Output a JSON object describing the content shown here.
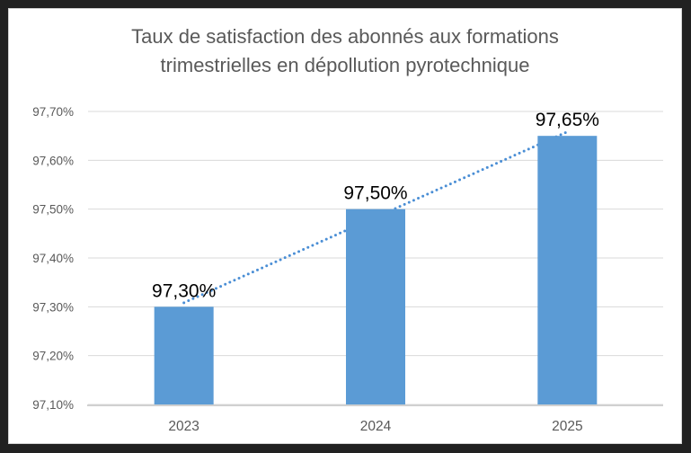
{
  "frame": {
    "background": "#212121"
  },
  "chart": {
    "background": "#ffffff",
    "border_color": "#d4d4d4",
    "title_color": "#595959",
    "title_lines": [
      "Taux de satisfaction des abonnés aux formations",
      "trimestrielles en dépollution pyrotechnique"
    ]
  },
  "chart_data": {
    "type": "bar",
    "title": "Taux de satisfaction des abonnés aux formations trimestrielles en dépollution pyrotechnique",
    "categories": [
      "2023",
      "2024",
      "2025"
    ],
    "values": [
      97.3,
      97.5,
      97.65
    ],
    "data_labels": [
      "97,30%",
      "97,50%",
      "97,65%"
    ],
    "data_label_color": "#000000",
    "bar_color": "#5b9bd5",
    "ylim": [
      97.1,
      97.7
    ],
    "y_ticks": [
      {
        "value": 97.7,
        "label": "97,70%"
      },
      {
        "value": 97.6,
        "label": "97,60%"
      },
      {
        "value": 97.5,
        "label": "97,50%"
      },
      {
        "value": 97.4,
        "label": "97,40%"
      },
      {
        "value": 97.3,
        "label": "97,30%"
      },
      {
        "value": 97.2,
        "label": "97,20%"
      },
      {
        "value": 97.1,
        "label": "97,10%"
      }
    ],
    "grid": true,
    "gridline_color": "#d9d9d9",
    "axis_line_color": "#d0d0d0",
    "axis_label_color": "#595959",
    "legend": "none",
    "trendline": {
      "type": "linear",
      "style": "dotted",
      "color": "#4a8ed5",
      "start_value": 97.3083,
      "end_value": 97.6583
    }
  }
}
